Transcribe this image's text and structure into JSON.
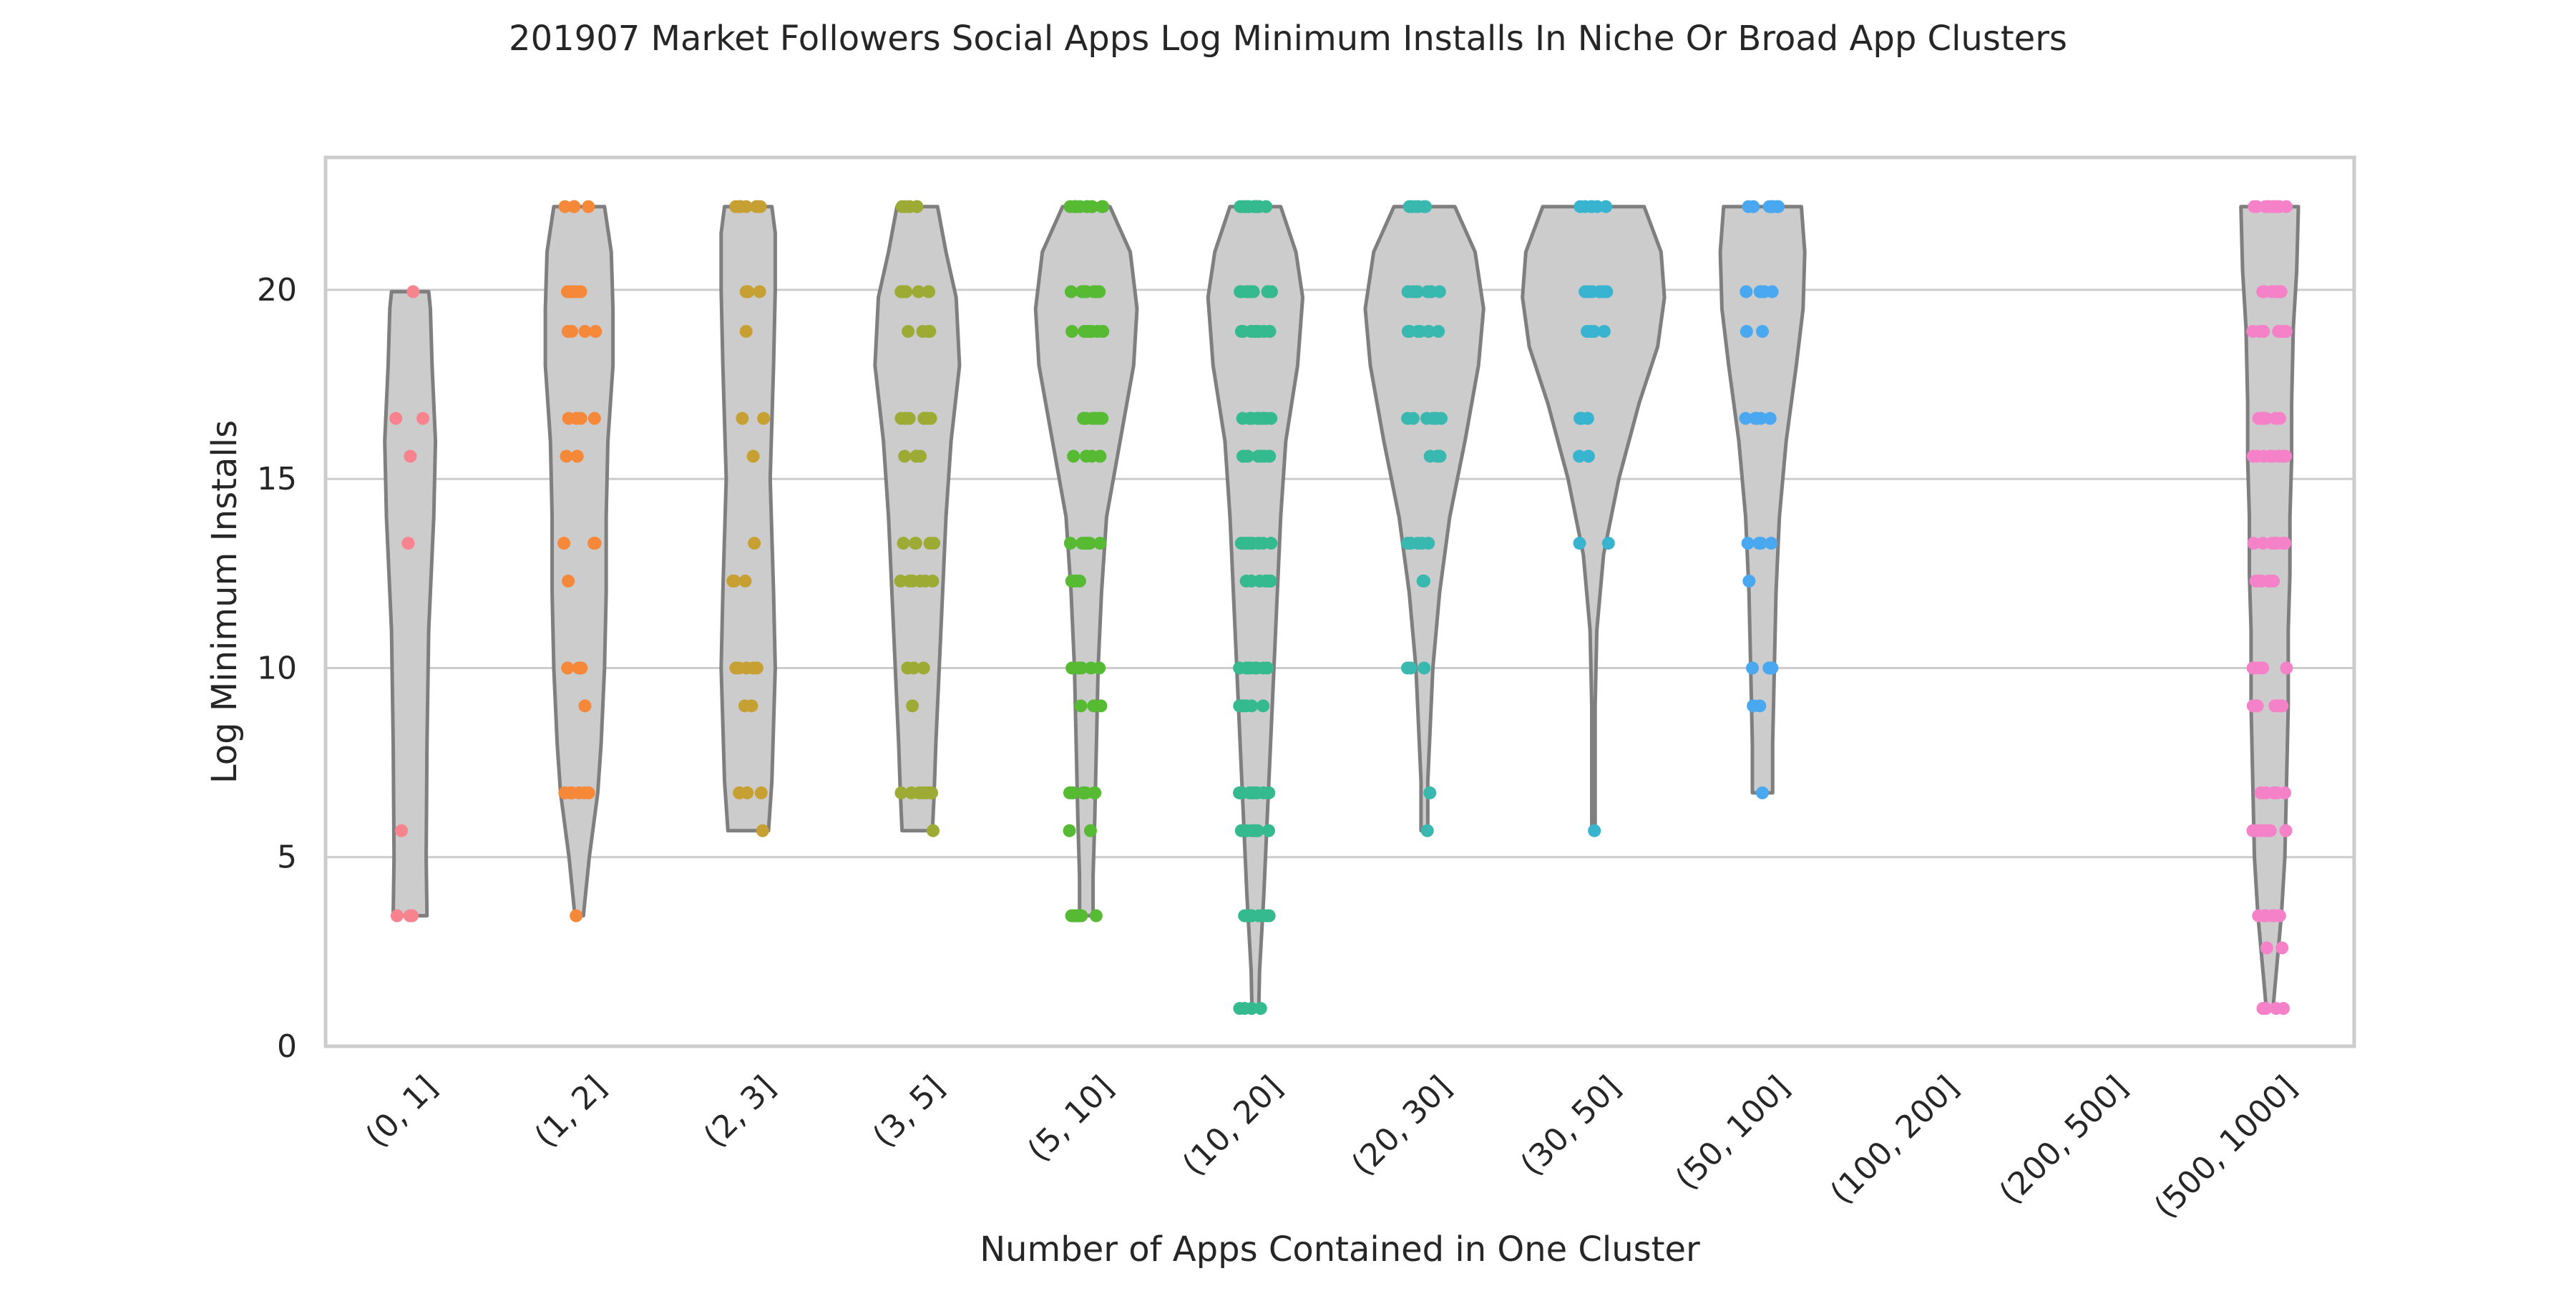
{
  "chart_data": {
    "type": "violin",
    "title": "201907 Market Followers Social Apps Log Minimum Installs In Niche Or Broad App Clusters",
    "xlabel": "Number of Apps Contained in One Cluster",
    "ylabel": "Log Minimum Installs",
    "ylim": [
      0,
      23.5
    ],
    "yticks": [
      0,
      5,
      10,
      15,
      20
    ],
    "grid": "horizontal",
    "categories": [
      "(0, 1]",
      "(1, 2]",
      "(2, 3]",
      "(3, 5]",
      "(5, 10]",
      "(10, 20]",
      "(20, 30]",
      "(30, 50]",
      "(50, 100]",
      "(100, 200]",
      "(200, 500]",
      "(500, 1000]"
    ],
    "violin_color": "#cccccc",
    "violin_edge_color": "#7f7f7f",
    "violins": [
      {
        "category": "(0, 1]",
        "min": 3.45,
        "max": 19.95,
        "half_widths": [
          [
            3.45,
            0.1
          ],
          [
            5,
            0.095
          ],
          [
            8,
            0.1
          ],
          [
            11,
            0.11
          ],
          [
            14,
            0.14
          ],
          [
            16,
            0.15
          ],
          [
            18,
            0.13
          ],
          [
            19.5,
            0.12
          ],
          [
            19.95,
            0.11
          ]
        ]
      },
      {
        "category": "(1, 2]",
        "min": 3.45,
        "max": 22.2,
        "half_widths": [
          [
            3.45,
            0.025
          ],
          [
            5,
            0.06
          ],
          [
            6.7,
            0.11
          ],
          [
            8,
            0.13
          ],
          [
            10,
            0.15
          ],
          [
            12,
            0.16
          ],
          [
            14,
            0.16
          ],
          [
            16,
            0.17
          ],
          [
            18,
            0.2
          ],
          [
            19.5,
            0.2
          ],
          [
            21,
            0.19
          ],
          [
            22.2,
            0.15
          ]
        ]
      },
      {
        "category": "(2, 3]",
        "min": 5.7,
        "max": 22.2,
        "half_widths": [
          [
            5.7,
            0.12
          ],
          [
            7,
            0.14
          ],
          [
            10,
            0.16
          ],
          [
            12,
            0.15
          ],
          [
            15,
            0.13
          ],
          [
            16.5,
            0.14
          ],
          [
            18,
            0.15
          ],
          [
            20,
            0.16
          ],
          [
            21.5,
            0.16
          ],
          [
            22.2,
            0.14
          ]
        ]
      },
      {
        "category": "(3, 5]",
        "min": 5.7,
        "max": 22.2,
        "half_widths": [
          [
            5.7,
            0.09
          ],
          [
            6.7,
            0.1
          ],
          [
            8,
            0.11
          ],
          [
            10,
            0.13
          ],
          [
            12,
            0.15
          ],
          [
            14,
            0.17
          ],
          [
            16,
            0.2
          ],
          [
            18,
            0.25
          ],
          [
            19.8,
            0.23
          ],
          [
            21,
            0.17
          ],
          [
            22.2,
            0.12
          ]
        ]
      },
      {
        "category": "(5, 10]",
        "min": 3.45,
        "max": 22.2,
        "half_widths": [
          [
            3.45,
            0.04
          ],
          [
            4.5,
            0.04
          ],
          [
            6,
            0.05
          ],
          [
            8,
            0.06
          ],
          [
            10,
            0.07
          ],
          [
            12,
            0.09
          ],
          [
            14,
            0.12
          ],
          [
            16,
            0.2
          ],
          [
            18,
            0.28
          ],
          [
            19.5,
            0.3
          ],
          [
            21,
            0.26
          ],
          [
            22.2,
            0.14
          ]
        ]
      },
      {
        "category": "(10, 20]",
        "min": 1.0,
        "max": 22.2,
        "half_widths": [
          [
            1.0,
            0.02
          ],
          [
            2,
            0.025
          ],
          [
            4,
            0.05
          ],
          [
            6,
            0.07
          ],
          [
            8,
            0.09
          ],
          [
            10,
            0.11
          ],
          [
            12,
            0.13
          ],
          [
            14,
            0.15
          ],
          [
            16,
            0.18
          ],
          [
            18,
            0.25
          ],
          [
            19.8,
            0.28
          ],
          [
            21,
            0.24
          ],
          [
            22.2,
            0.15
          ]
        ]
      },
      {
        "category": "(20, 30]",
        "min": 5.7,
        "max": 22.2,
        "half_widths": [
          [
            5.7,
            0.02
          ],
          [
            7,
            0.02
          ],
          [
            8,
            0.03
          ],
          [
            10,
            0.05
          ],
          [
            12,
            0.09
          ],
          [
            14,
            0.15
          ],
          [
            16,
            0.24
          ],
          [
            18,
            0.32
          ],
          [
            19.5,
            0.35
          ],
          [
            21,
            0.3
          ],
          [
            22.2,
            0.18
          ]
        ]
      },
      {
        "category": "(30, 50]",
        "min": 5.7,
        "max": 22.2,
        "half_widths": [
          [
            5.7,
            0.01
          ],
          [
            7,
            0.01
          ],
          [
            9,
            0.01
          ],
          [
            11,
            0.02
          ],
          [
            13,
            0.06
          ],
          [
            15,
            0.15
          ],
          [
            17,
            0.27
          ],
          [
            18.5,
            0.38
          ],
          [
            19.8,
            0.42
          ],
          [
            21,
            0.4
          ],
          [
            22.2,
            0.3
          ]
        ]
      },
      {
        "category": "(50, 100]",
        "min": 6.7,
        "max": 22.2,
        "half_widths": [
          [
            6.7,
            0.06
          ],
          [
            8,
            0.06
          ],
          [
            10,
            0.07
          ],
          [
            12,
            0.08
          ],
          [
            14,
            0.1
          ],
          [
            16,
            0.14
          ],
          [
            18,
            0.2
          ],
          [
            19.5,
            0.24
          ],
          [
            21,
            0.25
          ],
          [
            22.2,
            0.23
          ]
        ]
      },
      {
        "category": "(500, 1000]",
        "min": 1.0,
        "max": 22.2,
        "half_widths": [
          [
            1.0,
            0.02
          ],
          [
            2,
            0.04
          ],
          [
            3.5,
            0.07
          ],
          [
            5,
            0.09
          ],
          [
            7,
            0.1
          ],
          [
            9,
            0.11
          ],
          [
            11,
            0.11
          ],
          [
            12.5,
            0.12
          ],
          [
            14,
            0.12
          ],
          [
            15.5,
            0.13
          ],
          [
            17,
            0.13
          ],
          [
            19,
            0.14
          ],
          [
            20.5,
            0.16
          ],
          [
            22.2,
            0.17
          ]
        ]
      }
    ],
    "series": [
      {
        "category": "(0, 1]",
        "color": "#f7838f",
        "values": [
          3.45,
          3.45,
          3.45,
          5.7,
          13.3,
          15.6,
          16.6,
          16.6,
          19.95
        ]
      },
      {
        "category": "(1, 2]",
        "color": "#f6883a",
        "values": [
          3.45,
          6.7,
          6.7,
          6.7,
          6.7,
          6.7,
          6.7,
          9.0,
          10.0,
          10.0,
          10.0,
          12.3,
          13.3,
          13.3,
          13.3,
          15.6,
          15.6,
          16.6,
          16.6,
          16.6,
          16.6,
          18.9,
          18.9,
          18.9,
          18.9,
          19.95,
          19.95,
          19.95,
          19.95,
          19.95,
          22.2,
          22.2,
          22.2,
          22.2
        ]
      },
      {
        "category": "(2, 3]",
        "color": "#c7a034",
        "values": [
          5.7,
          6.7,
          6.7,
          6.7,
          6.7,
          9.0,
          9.0,
          10.0,
          10.0,
          10.0,
          10.0,
          10.0,
          12.3,
          12.3,
          12.3,
          13.3,
          15.6,
          16.6,
          16.6,
          18.9,
          19.95,
          19.95,
          19.95,
          19.95,
          22.2,
          22.2,
          22.2,
          22.2,
          22.2,
          22.2,
          22.2,
          22.2
        ]
      },
      {
        "category": "(3, 5]",
        "color": "#9dab35",
        "values": [
          5.7,
          6.7,
          6.7,
          6.7,
          6.7,
          6.7,
          6.7,
          6.7,
          9.0,
          10.0,
          10.0,
          10.0,
          12.3,
          12.3,
          12.3,
          12.3,
          12.3,
          12.3,
          13.3,
          13.3,
          13.3,
          13.3,
          13.3,
          15.6,
          15.6,
          15.6,
          16.6,
          16.6,
          16.6,
          16.6,
          16.6,
          16.6,
          16.6,
          18.9,
          18.9,
          18.9,
          18.9,
          19.95,
          19.95,
          19.95,
          19.95,
          19.95,
          19.95,
          19.95,
          22.2,
          22.2,
          22.2,
          22.2,
          22.2
        ]
      },
      {
        "category": "(5, 10]",
        "color": "#56bb33",
        "values": [
          3.45,
          3.45,
          3.45,
          3.45,
          3.45,
          3.45,
          3.45,
          5.7,
          5.7,
          6.7,
          6.7,
          6.7,
          6.7,
          6.7,
          6.7,
          6.7,
          6.7,
          6.7,
          9.0,
          9.0,
          9.0,
          10.0,
          10.0,
          10.0,
          10.0,
          10.0,
          12.3,
          12.3,
          12.3,
          12.3,
          13.3,
          13.3,
          13.3,
          13.3,
          13.3,
          13.3,
          13.3,
          13.3,
          15.6,
          15.6,
          15.6,
          15.6,
          15.6,
          16.6,
          16.6,
          16.6,
          16.6,
          16.6,
          16.6,
          16.6,
          16.6,
          16.6,
          18.9,
          18.9,
          18.9,
          18.9,
          18.9,
          18.9,
          18.9,
          18.9,
          18.9,
          19.95,
          19.95,
          19.95,
          19.95,
          19.95,
          19.95,
          19.95,
          19.95,
          19.95,
          19.95,
          22.2,
          22.2,
          22.2,
          22.2,
          22.2,
          22.2,
          22.2,
          22.2,
          22.2,
          22.2,
          22.2
        ]
      },
      {
        "category": "(10, 20]",
        "color": "#35b98e",
        "values": [
          1.0,
          1.0,
          1.0,
          1.0,
          3.45,
          3.45,
          3.45,
          3.45,
          3.45,
          3.45,
          3.45,
          3.45,
          3.45,
          5.7,
          5.7,
          5.7,
          5.7,
          5.7,
          5.7,
          5.7,
          5.7,
          5.7,
          6.7,
          6.7,
          6.7,
          6.7,
          6.7,
          6.7,
          6.7,
          6.7,
          6.7,
          9.0,
          9.0,
          9.0,
          9.0,
          9.0,
          10.0,
          10.0,
          10.0,
          10.0,
          10.0,
          10.0,
          10.0,
          10.0,
          12.3,
          12.3,
          12.3,
          12.3,
          12.3,
          12.3,
          12.3,
          13.3,
          13.3,
          13.3,
          13.3,
          13.3,
          13.3,
          13.3,
          13.3,
          13.3,
          13.3,
          15.6,
          15.6,
          15.6,
          15.6,
          15.6,
          15.6,
          15.6,
          15.6,
          16.6,
          16.6,
          16.6,
          16.6,
          16.6,
          16.6,
          16.6,
          16.6,
          16.6,
          16.6,
          16.6,
          18.9,
          18.9,
          18.9,
          18.9,
          18.9,
          18.9,
          18.9,
          18.9,
          18.9,
          18.9,
          18.9,
          19.95,
          19.95,
          19.95,
          19.95,
          19.95,
          19.95,
          19.95,
          19.95,
          19.95,
          19.95,
          19.95,
          22.2,
          22.2,
          22.2,
          22.2,
          22.2,
          22.2,
          22.2,
          22.2,
          22.2,
          22.2,
          22.2,
          22.2
        ]
      },
      {
        "category": "(20, 30]",
        "color": "#38b8ae",
        "values": [
          5.7,
          6.7,
          10.0,
          10.0,
          10.0,
          12.3,
          12.3,
          13.3,
          13.3,
          13.3,
          13.3,
          13.3,
          13.3,
          15.6,
          15.6,
          15.6,
          16.6,
          16.6,
          16.6,
          16.6,
          16.6,
          16.6,
          16.6,
          18.9,
          18.9,
          18.9,
          18.9,
          18.9,
          18.9,
          18.9,
          19.95,
          19.95,
          19.95,
          19.95,
          19.95,
          19.95,
          19.95,
          19.95,
          22.2,
          22.2,
          22.2,
          22.2,
          22.2,
          22.2
        ]
      },
      {
        "category": "(30, 50]",
        "color": "#39b4d0",
        "values": [
          5.7,
          13.3,
          13.3,
          15.6,
          15.6,
          16.6,
          16.6,
          16.6,
          16.6,
          16.6,
          16.6,
          18.9,
          18.9,
          18.9,
          18.9,
          18.9,
          19.95,
          19.95,
          19.95,
          19.95,
          19.95,
          19.95,
          19.95,
          22.2,
          22.2,
          22.2,
          22.2,
          22.2,
          22.2
        ]
      },
      {
        "category": "(50, 100]",
        "color": "#4aa8f0",
        "values": [
          6.7,
          9.0,
          9.0,
          10.0,
          10.0,
          10.0,
          10.0,
          12.3,
          13.3,
          13.3,
          13.3,
          13.3,
          16.6,
          16.6,
          16.6,
          16.6,
          16.6,
          18.9,
          18.9,
          19.95,
          19.95,
          19.95,
          19.95,
          19.95,
          22.2,
          22.2,
          22.2,
          22.2,
          22.2,
          22.2,
          22.2
        ]
      },
      {
        "category": "(500, 1000]",
        "color": "#f582c8",
        "values": [
          1.0,
          1.0,
          1.0,
          1.0,
          2.6,
          2.6,
          3.45,
          3.45,
          3.45,
          3.45,
          3.45,
          3.45,
          3.45,
          3.45,
          5.7,
          5.7,
          5.7,
          5.7,
          5.7,
          5.7,
          5.7,
          5.7,
          6.7,
          6.7,
          6.7,
          6.7,
          6.7,
          6.7,
          6.7,
          6.7,
          9.0,
          9.0,
          9.0,
          9.0,
          9.0,
          9.0,
          9.0,
          10.0,
          10.0,
          10.0,
          10.0,
          10.0,
          10.0,
          10.0,
          12.3,
          12.3,
          12.3,
          12.3,
          12.3,
          12.3,
          12.3,
          12.3,
          13.3,
          13.3,
          13.3,
          13.3,
          13.3,
          13.3,
          13.3,
          13.3,
          13.3,
          15.6,
          15.6,
          15.6,
          15.6,
          15.6,
          15.6,
          15.6,
          15.6,
          15.6,
          16.6,
          16.6,
          16.6,
          16.6,
          16.6,
          16.6,
          16.6,
          16.6,
          16.6,
          18.9,
          18.9,
          18.9,
          18.9,
          18.9,
          18.9,
          18.9,
          18.9,
          18.9,
          19.95,
          19.95,
          19.95,
          19.95,
          19.95,
          19.95,
          19.95,
          19.95,
          19.95,
          22.2,
          22.2,
          22.2,
          22.2,
          22.2,
          22.2,
          22.2,
          22.2,
          22.2,
          22.2
        ]
      }
    ]
  }
}
